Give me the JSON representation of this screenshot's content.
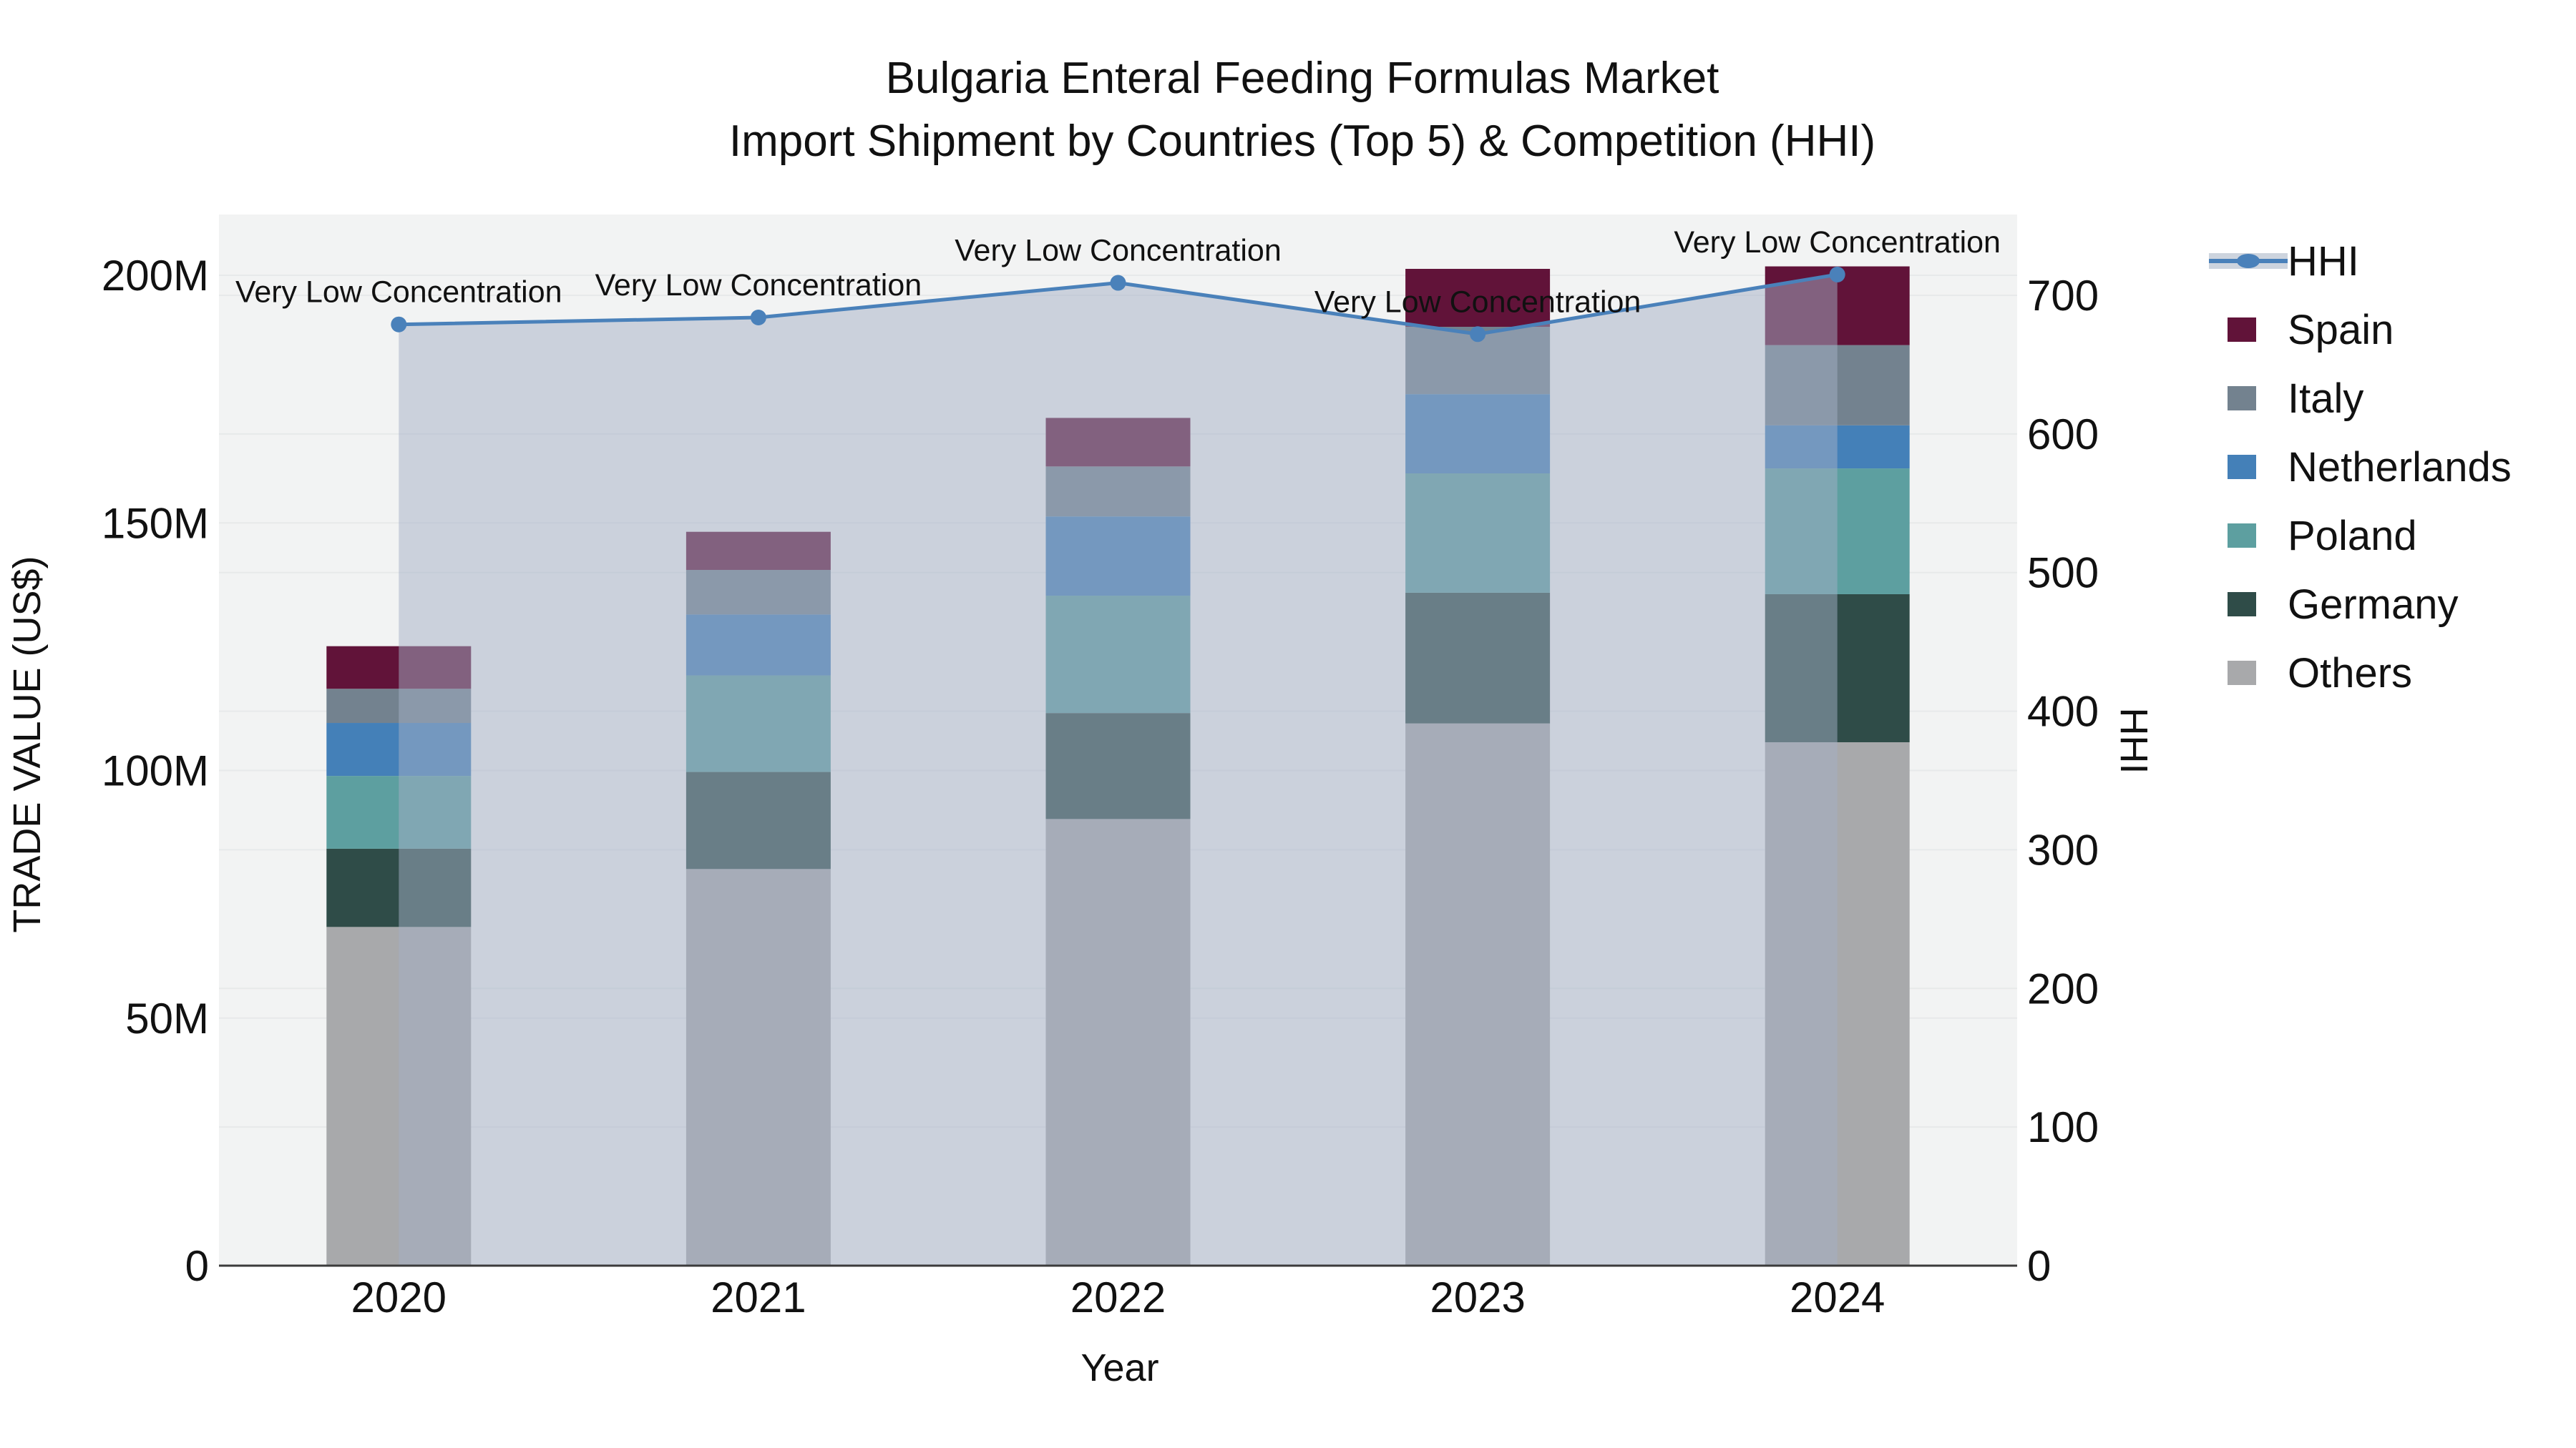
{
  "title": {
    "line1": "Bulgaria Enteral Feeding Formulas Market",
    "line2": "Import Shipment by Countries (Top 5) & Competition (HHI)"
  },
  "axes": {
    "x": {
      "title": "Year",
      "categories": [
        "2020",
        "2021",
        "2022",
        "2023",
        "2024"
      ]
    },
    "y_left": {
      "title": "TRADE VALUE (US$)",
      "tick_labels": [
        "0",
        "50M",
        "100M",
        "150M",
        "200M"
      ],
      "tick_values": [
        0,
        50,
        100,
        150,
        200
      ]
    },
    "y_right": {
      "title": "HHI",
      "tick_labels": [
        "0",
        "100",
        "200",
        "300",
        "400",
        "500",
        "600",
        "700"
      ],
      "tick_values": [
        0,
        100,
        200,
        300,
        400,
        500,
        600,
        700
      ]
    }
  },
  "legend": {
    "items": [
      {
        "label": "HHI",
        "type": "line",
        "color": "#4A81BA"
      },
      {
        "label": "Spain",
        "type": "swatch",
        "color": "#611339"
      },
      {
        "label": "Italy",
        "type": "swatch",
        "color": "#73828F"
      },
      {
        "label": "Netherlands",
        "type": "swatch",
        "color": "#4480B8"
      },
      {
        "label": "Poland",
        "type": "swatch",
        "color": "#5D9FA0"
      },
      {
        "label": "Germany",
        "type": "swatch",
        "color": "#2F4C48"
      },
      {
        "label": "Others",
        "type": "swatch",
        "color": "#A8A9AB"
      }
    ]
  },
  "annotations": {
    "label": "Very Low Concentration"
  },
  "colors": {
    "hhi_line": "#4A81BA",
    "hhi_fill": "rgba(163,176,197,0.5)",
    "plot_bg": "#F2F3F3",
    "grid": "#E7E9EA",
    "axis_line": "#3B3B3B",
    "text": "#111111"
  },
  "chart_data": {
    "type": "combo: stacked bar (trade value, left axis) + line with area fill (HHI, right axis)",
    "categories": [
      "2020",
      "2021",
      "2022",
      "2023",
      "2024"
    ],
    "bar_unit": "million US$",
    "series": [
      {
        "name": "Others",
        "values": [
          68.4,
          80.1,
          90.2,
          109.5,
          105.7
        ]
      },
      {
        "name": "Germany",
        "values": [
          15.8,
          19.6,
          21.4,
          26.4,
          29.9
        ]
      },
      {
        "name": "Poland",
        "values": [
          14.7,
          19.5,
          23.7,
          24.1,
          25.4
        ]
      },
      {
        "name": "Netherlands",
        "values": [
          10.7,
          12.3,
          16.0,
          16.0,
          8.7
        ]
      },
      {
        "name": "Italy",
        "values": [
          6.9,
          9.0,
          10.1,
          13.6,
          16.2
        ]
      },
      {
        "name": "Spain",
        "values": [
          8.6,
          7.7,
          9.8,
          11.7,
          15.9
        ]
      }
    ],
    "totals": [
      125.1,
      148.2,
      171.2,
      201.3,
      201.8
    ],
    "hhi": {
      "name": "HHI",
      "values": [
        679,
        684,
        709,
        672,
        715
      ],
      "axis": "right"
    },
    "point_annotations": [
      "Very Low Concentration",
      "Very Low Concentration",
      "Very Low Concentration",
      "Very Low Concentration",
      "Very Low Concentration"
    ],
    "y_left_range": [
      0,
      212
    ],
    "y_right_range": [
      0,
      758
    ],
    "grid": true,
    "legend_position": "right",
    "stack_order_bottom_to_top": [
      "Others",
      "Germany",
      "Poland",
      "Netherlands",
      "Italy",
      "Spain"
    ]
  }
}
